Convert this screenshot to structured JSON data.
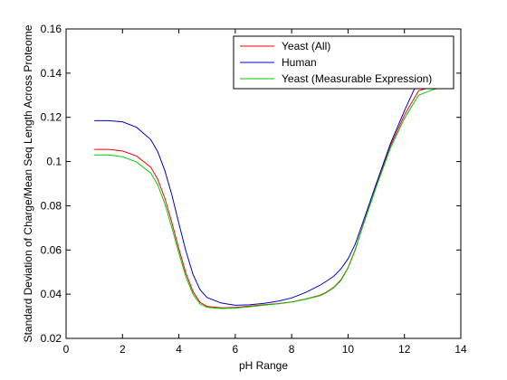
{
  "chart_data": {
    "type": "line",
    "title": "",
    "xlabel": "pH Range",
    "ylabel": "Standard Deviation of Charge/Mean Seq Length Across Proteome",
    "xlim": [
      0,
      14
    ],
    "ylim": [
      0.02,
      0.16
    ],
    "x_ticks": [
      0,
      2,
      4,
      6,
      8,
      10,
      12,
      14
    ],
    "y_ticks": [
      0.02,
      0.04,
      0.06,
      0.08,
      0.1,
      0.12,
      0.14,
      0.16
    ],
    "x_tick_labels": [
      "0",
      "2",
      "4",
      "6",
      "8",
      "10",
      "12",
      "14"
    ],
    "y_tick_labels": [
      "0.02",
      "0.04",
      "0.06",
      "0.08",
      "0.1",
      "0.12",
      "0.14",
      "0.16"
    ],
    "grid": false,
    "legend_position": "top-right",
    "series": [
      {
        "name": "Yeast (All)",
        "color": "#ff0000",
        "x": [
          1,
          1.5,
          2,
          2.5,
          3,
          3.25,
          3.5,
          3.75,
          4,
          4.25,
          4.5,
          4.75,
          5,
          5.5,
          6,
          6.5,
          7,
          7.5,
          8,
          8.5,
          9,
          9.25,
          9.5,
          9.75,
          10,
          10.25,
          10.5,
          11,
          11.5,
          12,
          12.5,
          13,
          13.5
        ],
        "y": [
          0.1055,
          0.1055,
          0.1048,
          0.1025,
          0.0975,
          0.092,
          0.0835,
          0.0725,
          0.0605,
          0.0495,
          0.0412,
          0.0363,
          0.0345,
          0.0338,
          0.034,
          0.0346,
          0.0352,
          0.0357,
          0.0365,
          0.0378,
          0.0395,
          0.041,
          0.0432,
          0.0465,
          0.052,
          0.06,
          0.07,
          0.089,
          0.107,
          0.121,
          0.132,
          0.134,
          0.1355
        ]
      },
      {
        "name": "Human",
        "color": "#0000cc",
        "x": [
          1,
          1.5,
          2,
          2.5,
          3,
          3.25,
          3.5,
          3.75,
          4,
          4.25,
          4.5,
          4.75,
          5,
          5.5,
          6,
          6.5,
          7,
          7.5,
          8,
          8.5,
          9,
          9.25,
          9.5,
          9.75,
          10,
          10.25,
          10.5,
          11,
          11.5,
          12,
          12.5,
          13,
          13.5
        ],
        "y": [
          0.1185,
          0.1185,
          0.118,
          0.1155,
          0.11,
          0.1045,
          0.096,
          0.085,
          0.072,
          0.0595,
          0.049,
          0.042,
          0.0385,
          0.036,
          0.035,
          0.0352,
          0.0358,
          0.0368,
          0.0383,
          0.0408,
          0.044,
          0.046,
          0.0482,
          0.0515,
          0.056,
          0.0625,
          0.0715,
          0.09,
          0.108,
          0.123,
          0.137,
          0.14,
          0.14
        ]
      },
      {
        "name": "Yeast (Measurable Expression)",
        "color": "#00cc00",
        "x": [
          1,
          1.5,
          2,
          2.5,
          3,
          3.25,
          3.5,
          3.75,
          4,
          4.25,
          4.5,
          4.75,
          5,
          5.5,
          6,
          6.5,
          7,
          7.5,
          8,
          8.5,
          9,
          9.25,
          9.5,
          9.75,
          10,
          10.25,
          10.5,
          11,
          11.5,
          12,
          12.5,
          13,
          13.5
        ],
        "y": [
          0.103,
          0.103,
          0.1022,
          0.0998,
          0.0948,
          0.0895,
          0.081,
          0.0702,
          0.0585,
          0.0478,
          0.04,
          0.0356,
          0.034,
          0.0335,
          0.0337,
          0.0343,
          0.035,
          0.0356,
          0.0364,
          0.0377,
          0.0393,
          0.0408,
          0.043,
          0.0462,
          0.0518,
          0.0598,
          0.0698,
          0.0885,
          0.106,
          0.1195,
          0.13,
          0.1325,
          0.134
        ]
      }
    ]
  }
}
